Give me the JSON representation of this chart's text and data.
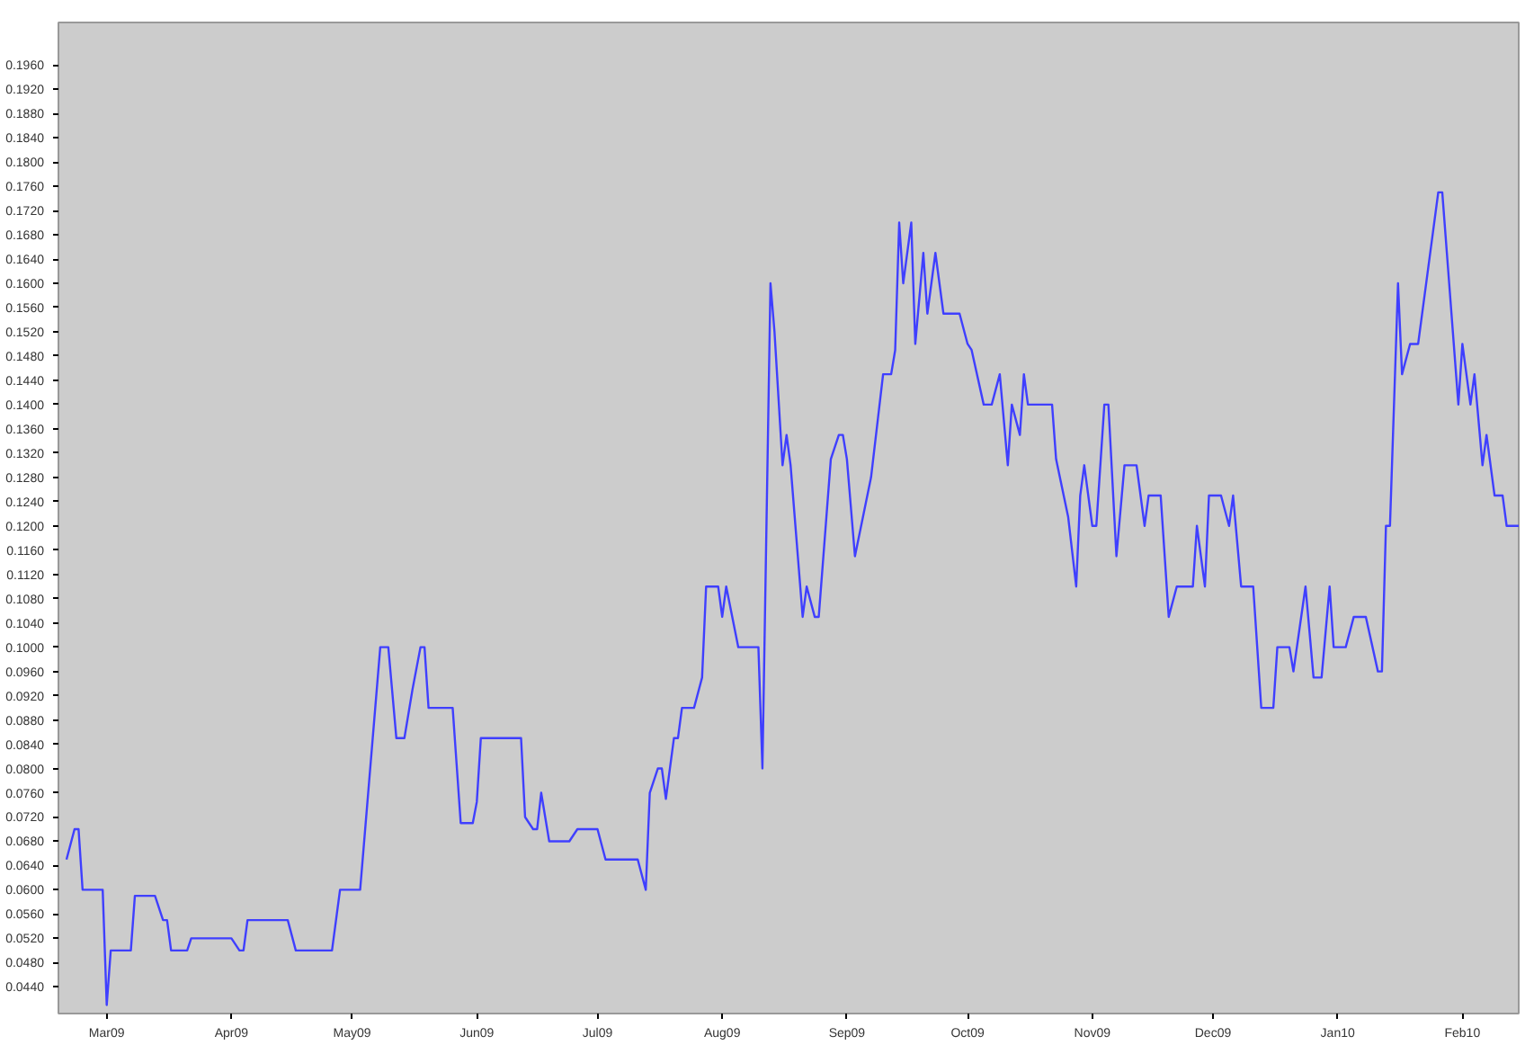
{
  "chart_data": {
    "type": "line",
    "x": [
      "2009-02-19",
      "2009-02-21",
      "2009-02-22",
      "2009-02-23",
      "2009-02-28",
      "2009-03-01",
      "2009-03-02",
      "2009-03-07",
      "2009-03-08",
      "2009-03-13",
      "2009-03-15",
      "2009-03-16",
      "2009-03-17",
      "2009-03-21",
      "2009-03-22",
      "2009-04-01",
      "2009-04-03",
      "2009-04-04",
      "2009-04-05",
      "2009-04-15",
      "2009-04-17",
      "2009-04-26",
      "2009-04-28",
      "2009-05-03",
      "2009-05-08",
      "2009-05-10",
      "2009-05-12",
      "2009-05-14",
      "2009-05-16",
      "2009-05-18",
      "2009-05-19",
      "2009-05-20",
      "2009-05-26",
      "2009-05-28",
      "2009-05-31",
      "2009-06-01",
      "2009-06-02",
      "2009-06-12",
      "2009-06-13",
      "2009-06-15",
      "2009-06-16",
      "2009-06-17",
      "2009-06-19",
      "2009-06-24",
      "2009-06-26",
      "2009-07-01",
      "2009-07-03",
      "2009-07-11",
      "2009-07-13",
      "2009-07-14",
      "2009-07-16",
      "2009-07-17",
      "2009-07-18",
      "2009-07-20",
      "2009-07-21",
      "2009-07-22",
      "2009-07-25",
      "2009-07-27",
      "2009-07-28",
      "2009-07-31",
      "2009-08-01",
      "2009-08-02",
      "2009-08-05",
      "2009-08-10",
      "2009-08-11",
      "2009-08-13",
      "2009-08-14",
      "2009-08-16",
      "2009-08-17",
      "2009-08-18",
      "2009-08-21",
      "2009-08-22",
      "2009-08-24",
      "2009-08-25",
      "2009-08-28",
      "2009-08-30",
      "2009-08-31",
      "2009-09-01",
      "2009-09-03",
      "2009-09-07",
      "2009-09-10",
      "2009-09-12",
      "2009-09-13",
      "2009-09-14",
      "2009-09-15",
      "2009-09-17",
      "2009-09-18",
      "2009-09-20",
      "2009-09-21",
      "2009-09-23",
      "2009-09-25",
      "2009-09-29",
      "2009-10-01",
      "2009-10-02",
      "2009-10-05",
      "2009-10-07",
      "2009-10-09",
      "2009-10-11",
      "2009-10-12",
      "2009-10-14",
      "2009-10-15",
      "2009-10-16",
      "2009-10-22",
      "2009-10-23",
      "2009-10-26",
      "2009-10-28",
      "2009-10-29",
      "2009-10-30",
      "2009-11-01",
      "2009-11-02",
      "2009-11-04",
      "2009-11-05",
      "2009-11-07",
      "2009-11-09",
      "2009-11-12",
      "2009-11-14",
      "2009-11-15",
      "2009-11-18",
      "2009-11-20",
      "2009-11-22",
      "2009-11-26",
      "2009-11-27",
      "2009-11-29",
      "2009-11-30",
      "2009-12-03",
      "2009-12-05",
      "2009-12-06",
      "2009-12-08",
      "2009-12-11",
      "2009-12-13",
      "2009-12-16",
      "2009-12-17",
      "2009-12-20",
      "2009-12-21",
      "2009-12-24",
      "2009-12-26",
      "2009-12-28",
      "2009-12-30",
      "2009-12-31",
      "2010-01-03",
      "2010-01-05",
      "2010-01-08",
      "2010-01-11",
      "2010-01-12",
      "2010-01-13",
      "2010-01-14",
      "2010-01-16",
      "2010-01-17",
      "2010-01-19",
      "2010-01-21",
      "2010-01-26",
      "2010-01-27",
      "2010-01-31",
      "2010-02-01",
      "2010-02-03",
      "2010-02-04",
      "2010-02-06",
      "2010-02-07",
      "2010-02-09",
      "2010-02-11",
      "2010-02-12",
      "2010-02-15"
    ],
    "series": [
      {
        "color": "#3f3fff",
        "values": [
          0.065,
          0.07,
          0.07,
          0.06,
          0.06,
          0.041,
          0.05,
          0.05,
          0.059,
          0.059,
          0.055,
          0.055,
          0.05,
          0.05,
          0.052,
          0.052,
          0.05,
          0.05,
          0.055,
          0.055,
          0.05,
          0.05,
          0.06,
          0.06,
          0.1,
          0.1,
          0.085,
          0.085,
          0.093,
          0.1,
          0.1,
          0.09,
          0.09,
          0.071,
          0.071,
          0.0745,
          0.085,
          0.085,
          0.072,
          0.07,
          0.07,
          0.076,
          0.068,
          0.068,
          0.07,
          0.07,
          0.065,
          0.065,
          0.06,
          0.076,
          0.08,
          0.08,
          0.075,
          0.085,
          0.085,
          0.09,
          0.09,
          0.095,
          0.11,
          0.11,
          0.105,
          0.11,
          0.1,
          0.1,
          0.08,
          0.16,
          0.152,
          0.13,
          0.135,
          0.13,
          0.105,
          0.11,
          0.105,
          0.105,
          0.131,
          0.135,
          0.135,
          0.131,
          0.115,
          0.128,
          0.145,
          0.145,
          0.149,
          0.17,
          0.16,
          0.17,
          0.15,
          0.165,
          0.155,
          0.165,
          0.155,
          0.155,
          0.15,
          0.149,
          0.14,
          0.14,
          0.145,
          0.13,
          0.14,
          0.135,
          0.145,
          0.14,
          0.14,
          0.131,
          0.1215,
          0.11,
          0.125,
          0.13,
          0.12,
          0.12,
          0.14,
          0.14,
          0.115,
          0.13,
          0.13,
          0.12,
          0.125,
          0.125,
          0.105,
          0.11,
          0.11,
          0.12,
          0.11,
          0.125,
          0.125,
          0.12,
          0.125,
          0.11,
          0.11,
          0.09,
          0.09,
          0.1,
          0.1,
          0.096,
          0.11,
          0.095,
          0.095,
          0.11,
          0.1,
          0.1,
          0.105,
          0.105,
          0.096,
          0.096,
          0.12,
          0.12,
          0.16,
          0.145,
          0.15,
          0.15,
          0.175,
          0.175,
          0.14,
          0.15,
          0.14,
          0.145,
          0.13,
          0.135,
          0.125,
          0.125,
          0.12,
          0.12
        ]
      }
    ],
    "xlim": [
      "2009-02-17",
      "2010-02-15"
    ],
    "xticks": [
      {
        "value": "2009-03-01",
        "label": "Mar09"
      },
      {
        "value": "2009-04-01",
        "label": "Apr09"
      },
      {
        "value": "2009-05-01",
        "label": "May09"
      },
      {
        "value": "2009-06-01",
        "label": "Jun09"
      },
      {
        "value": "2009-07-01",
        "label": "Jul09"
      },
      {
        "value": "2009-08-01",
        "label": "Aug09"
      },
      {
        "value": "2009-09-01",
        "label": "Sep09"
      },
      {
        "value": "2009-10-01",
        "label": "Oct09"
      },
      {
        "value": "2009-11-01",
        "label": "Nov09"
      },
      {
        "value": "2009-12-01",
        "label": "Dec09"
      },
      {
        "value": "2010-01-01",
        "label": "Jan10"
      },
      {
        "value": "2010-02-01",
        "label": "Feb10"
      }
    ],
    "ylim": [
      0.0396,
      0.203
    ],
    "yticks": [
      {
        "value": 0.044,
        "label": "0.0440"
      },
      {
        "value": 0.048,
        "label": "0.0480"
      },
      {
        "value": 0.052,
        "label": "0.0520"
      },
      {
        "value": 0.056,
        "label": "0.0560"
      },
      {
        "value": 0.06,
        "label": "0.0600"
      },
      {
        "value": 0.064,
        "label": "0.0640"
      },
      {
        "value": 0.068,
        "label": "0.0680"
      },
      {
        "value": 0.072,
        "label": "0.0720"
      },
      {
        "value": 0.076,
        "label": "0.0760"
      },
      {
        "value": 0.08,
        "label": "0.0800"
      },
      {
        "value": 0.084,
        "label": "0.0840"
      },
      {
        "value": 0.088,
        "label": "0.0880"
      },
      {
        "value": 0.092,
        "label": "0.0920"
      },
      {
        "value": 0.096,
        "label": "0.0960"
      },
      {
        "value": 0.1,
        "label": "0.1000"
      },
      {
        "value": 0.104,
        "label": "0.1040"
      },
      {
        "value": 0.108,
        "label": "0.1080"
      },
      {
        "value": 0.112,
        "label": "0.1120"
      },
      {
        "value": 0.116,
        "label": "0.1160"
      },
      {
        "value": 0.12,
        "label": "0.1200"
      },
      {
        "value": 0.124,
        "label": "0.1240"
      },
      {
        "value": 0.128,
        "label": "0.1280"
      },
      {
        "value": 0.132,
        "label": "0.1320"
      },
      {
        "value": 0.136,
        "label": "0.1360"
      },
      {
        "value": 0.14,
        "label": "0.1400"
      },
      {
        "value": 0.144,
        "label": "0.1440"
      },
      {
        "value": 0.148,
        "label": "0.1480"
      },
      {
        "value": 0.152,
        "label": "0.1520"
      },
      {
        "value": 0.156,
        "label": "0.1560"
      },
      {
        "value": 0.16,
        "label": "0.1600"
      },
      {
        "value": 0.164,
        "label": "0.1640"
      },
      {
        "value": 0.168,
        "label": "0.1680"
      },
      {
        "value": 0.172,
        "label": "0.1720"
      },
      {
        "value": 0.176,
        "label": "0.1760"
      },
      {
        "value": 0.18,
        "label": "0.1800"
      },
      {
        "value": 0.184,
        "label": "0.1840"
      },
      {
        "value": 0.188,
        "label": "0.1880"
      },
      {
        "value": 0.192,
        "label": "0.1920"
      },
      {
        "value": 0.196,
        "label": "0.1960"
      }
    ]
  }
}
